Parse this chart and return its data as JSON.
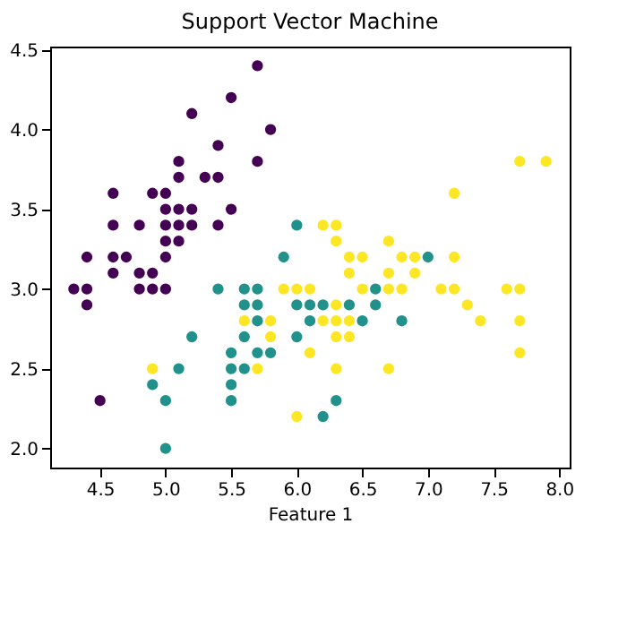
{
  "chart_data": {
    "type": "scatter",
    "title": "Support Vector Machine",
    "xlabel": "Feature 1",
    "xlim": [
      4.12,
      8.08
    ],
    "ylim": [
      1.88,
      4.52
    ],
    "xticks": [
      4.5,
      {
        "value": 5,
        "label": "5.0"
      },
      5.5,
      {
        "value": 6,
        "label": "6.0"
      },
      6.5,
      {
        "value": 7,
        "label": "7.0"
      },
      7.5,
      {
        "value": 8,
        "label": "8.0"
      }
    ],
    "yticks": [
      {
        "value": 2,
        "label": "2.0"
      },
      2.5,
      {
        "value": 3,
        "label": "3.0"
      },
      3.5,
      {
        "value": 4,
        "label": "4.0"
      },
      4.5
    ],
    "grid": false,
    "marker": "circle",
    "series": [
      {
        "color": "#440154",
        "x": [
          5.1,
          4.9,
          4.7,
          4.6,
          5.0,
          5.4,
          4.6,
          5.0,
          4.4,
          4.9,
          5.4,
          4.8,
          4.8,
          4.3,
          5.8,
          5.7,
          5.7,
          5.1,
          5.4,
          5.1,
          4.6,
          5.1,
          5.0,
          5.2,
          5.2,
          4.8,
          5.2,
          5.5,
          5.0,
          5.5,
          4.9,
          4.4,
          5.1,
          5.0,
          4.5,
          4.4,
          4.6,
          5.3,
          5.0
        ],
        "values": [
          3.5,
          3.0,
          3.2,
          3.1,
          3.6,
          3.9,
          3.4,
          3.4,
          2.9,
          3.1,
          3.7,
          3.4,
          3.0,
          3.0,
          4.0,
          4.4,
          3.8,
          3.8,
          3.4,
          3.7,
          3.6,
          3.3,
          3.0,
          3.5,
          3.4,
          3.1,
          4.1,
          4.2,
          3.2,
          3.5,
          3.6,
          3.0,
          3.4,
          3.5,
          2.3,
          3.2,
          3.2,
          3.7,
          3.3
        ]
      },
      {
        "color": "#21918c",
        "x": [
          7.0,
          6.5,
          5.7,
          5.5,
          4.9,
          6.6,
          5.2,
          5.0,
          6.1,
          5.6,
          5.6,
          6.2,
          5.6,
          5.9,
          6.1,
          6.4,
          6.6,
          6.8,
          6.0,
          5.7,
          5.5,
          6.0,
          5.4,
          6.0,
          6.3,
          5.5,
          5.5,
          5.8,
          5.0,
          5.6,
          5.7,
          5.7,
          6.2,
          5.1
        ],
        "values": [
          3.2,
          2.8,
          2.8,
          2.3,
          2.4,
          2.9,
          2.7,
          2.0,
          2.9,
          2.9,
          3.0,
          2.2,
          2.5,
          3.2,
          2.8,
          2.9,
          3.0,
          2.8,
          2.9,
          2.6,
          2.4,
          2.7,
          3.0,
          3.4,
          2.3,
          2.5,
          2.6,
          2.6,
          2.3,
          2.7,
          3.0,
          2.9,
          2.9,
          2.5
        ]
      },
      {
        "color": "#fde725",
        "x": [
          6.3,
          5.8,
          7.1,
          6.3,
          6.5,
          7.6,
          4.9,
          7.3,
          6.7,
          7.2,
          6.5,
          6.4,
          6.8,
          5.7,
          5.8,
          6.4,
          7.7,
          7.7,
          6.0,
          6.9,
          5.6,
          7.7,
          6.3,
          6.7,
          7.2,
          6.2,
          6.1,
          6.4,
          7.2,
          7.4,
          7.9,
          6.3,
          6.1,
          7.7,
          6.3,
          6.4,
          6.0,
          6.9,
          6.7,
          6.8,
          6.7,
          6.3,
          6.2,
          5.9
        ],
        "values": [
          3.3,
          2.7,
          3.0,
          2.9,
          3.0,
          3.0,
          2.5,
          2.9,
          2.5,
          3.6,
          3.2,
          2.7,
          3.0,
          2.5,
          2.8,
          3.2,
          3.8,
          2.6,
          2.2,
          3.2,
          2.8,
          2.8,
          2.7,
          3.3,
          3.2,
          2.8,
          3.0,
          2.8,
          3.0,
          2.8,
          3.8,
          2.8,
          2.6,
          3.0,
          3.4,
          3.1,
          3.0,
          3.1,
          3.1,
          3.2,
          3.0,
          2.5,
          3.4,
          3.0
        ]
      }
    ]
  }
}
